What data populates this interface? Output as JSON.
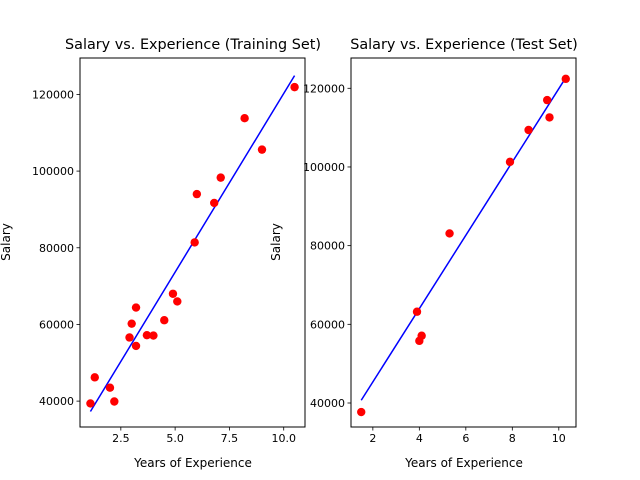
{
  "chart_data": [
    {
      "type": "scatter",
      "title": "Salary vs. Experience (Training Set)",
      "xlabel": "Years of Experience",
      "ylabel": "Salary",
      "xlim": [
        0.62,
        10.98
      ],
      "ylim": [
        33250,
        129500
      ],
      "xticks": [
        2.5,
        5.0,
        7.5,
        10.0
      ],
      "xtick_labels": [
        "2.5",
        "5.0",
        "7.5",
        "10.0"
      ],
      "yticks": [
        40000,
        60000,
        80000,
        100000,
        120000
      ],
      "ytick_labels": [
        "40000",
        "60000",
        "80000",
        "100000",
        "120000"
      ],
      "grid": false,
      "series": [
        {
          "type": "scatter",
          "color": "#ff0000",
          "points": [
            [
              1.1,
              39400
            ],
            [
              1.3,
              46200
            ],
            [
              2.0,
              43500
            ],
            [
              2.2,
              39900
            ],
            [
              2.9,
              56600
            ],
            [
              3.0,
              60200
            ],
            [
              3.2,
              64400
            ],
            [
              3.2,
              54400
            ],
            [
              3.7,
              57200
            ],
            [
              4.0,
              57100
            ],
            [
              4.5,
              61100
            ],
            [
              4.9,
              68000
            ],
            [
              5.1,
              66000
            ],
            [
              5.9,
              81400
            ],
            [
              6.0,
              94000
            ],
            [
              6.8,
              91700
            ],
            [
              7.1,
              98300
            ],
            [
              8.2,
              113800
            ],
            [
              9.0,
              105600
            ],
            [
              10.5,
              121900
            ]
          ]
        },
        {
          "type": "line",
          "color": "#0000ff",
          "points": [
            [
              1.1,
              37300
            ],
            [
              10.5,
              124900
            ]
          ]
        }
      ]
    },
    {
      "type": "scatter",
      "title": "Salary vs. Experience (Test Set)",
      "xlabel": "Years of Experience",
      "ylabel": "Salary",
      "xlim": [
        1.06,
        10.74
      ],
      "ylim": [
        33900,
        127700
      ],
      "xticks": [
        2,
        4,
        6,
        8,
        10
      ],
      "xtick_labels": [
        "2",
        "4",
        "6",
        "8",
        "10"
      ],
      "yticks": [
        40000,
        60000,
        80000,
        100000,
        120000
      ],
      "ytick_labels": [
        "40000",
        "60000",
        "80000",
        "100000",
        "120000"
      ],
      "grid": false,
      "series": [
        {
          "type": "scatter",
          "color": "#ff0000",
          "points": [
            [
              1.5,
              37700
            ],
            [
              3.9,
              63200
            ],
            [
              4.0,
              55800
            ],
            [
              4.1,
              57100
            ],
            [
              5.3,
              83100
            ],
            [
              7.9,
              101300
            ],
            [
              8.7,
              109400
            ],
            [
              9.5,
              117000
            ],
            [
              9.6,
              112600
            ],
            [
              10.3,
              122400
            ]
          ]
        },
        {
          "type": "line",
          "color": "#0000ff",
          "points": [
            [
              1.5,
              40700
            ],
            [
              10.3,
              122700
            ]
          ]
        }
      ]
    }
  ]
}
